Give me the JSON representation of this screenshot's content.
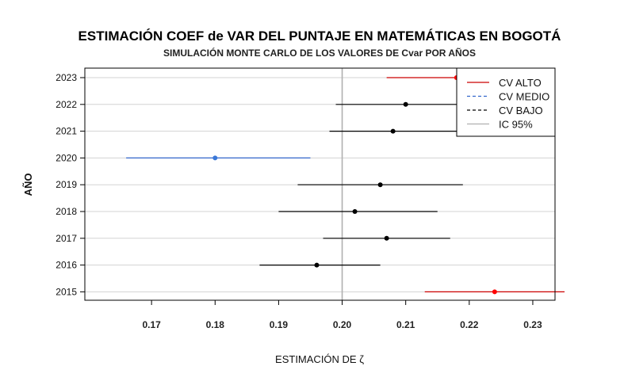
{
  "chart_data": {
    "type": "scatter",
    "title": "ESTIMACIÓN COEF de VAR DEL PUNTAJE EN MATEMÁTICAS EN BOGOTÁ",
    "subtitle": "SIMULACIÓN MONTE CARLO DE LOS VALORES DE Cvar POR AÑOS",
    "xlabel": "ESTIMACIÓN DE ζ",
    "ylabel": "AÑO",
    "xlim": [
      0.1595,
      0.2335
    ],
    "x_ticks": [
      "0.17",
      "0.18",
      "0.19",
      "0.20",
      "0.21",
      "0.22",
      "0.23"
    ],
    "x_tick_values": [
      0.17,
      0.18,
      0.19,
      0.2,
      0.21,
      0.22,
      0.23
    ],
    "reference_line": 0.2,
    "grid": true,
    "colors": {
      "alto": "#cc0000",
      "alto_point": "#ff0000",
      "medio": "#3366cc",
      "medio_point": "#3a78d8",
      "bajo": "#000000",
      "ic": "#b0b0b0",
      "grid": "#d3d3d3"
    },
    "points": [
      {
        "year": "2023",
        "estimate": 0.218,
        "lower": 0.207,
        "upper": 0.229,
        "group": "alto"
      },
      {
        "year": "2022",
        "estimate": 0.21,
        "lower": 0.199,
        "upper": 0.221,
        "group": "bajo"
      },
      {
        "year": "2021",
        "estimate": 0.208,
        "lower": 0.198,
        "upper": 0.219,
        "group": "bajo"
      },
      {
        "year": "2020",
        "estimate": 0.18,
        "lower": 0.166,
        "upper": 0.195,
        "group": "medio"
      },
      {
        "year": "2019",
        "estimate": 0.206,
        "lower": 0.193,
        "upper": 0.219,
        "group": "bajo"
      },
      {
        "year": "2018",
        "estimate": 0.202,
        "lower": 0.19,
        "upper": 0.215,
        "group": "bajo"
      },
      {
        "year": "2017",
        "estimate": 0.207,
        "lower": 0.197,
        "upper": 0.217,
        "group": "bajo"
      },
      {
        "year": "2016",
        "estimate": 0.196,
        "lower": 0.187,
        "upper": 0.206,
        "group": "bajo"
      },
      {
        "year": "2015",
        "estimate": 0.224,
        "lower": 0.213,
        "upper": 0.235,
        "group": "alto"
      }
    ],
    "legend": {
      "position": "top-right",
      "entries": [
        {
          "label": "CV ALTO",
          "group": "alto",
          "style": "solid"
        },
        {
          "label": "CV MEDIO",
          "group": "medio",
          "style": "dashed"
        },
        {
          "label": "CV BAJO",
          "group": "bajo",
          "style": "dashed"
        },
        {
          "label": "IC 95%",
          "group": "ic",
          "style": "solid"
        }
      ]
    }
  }
}
